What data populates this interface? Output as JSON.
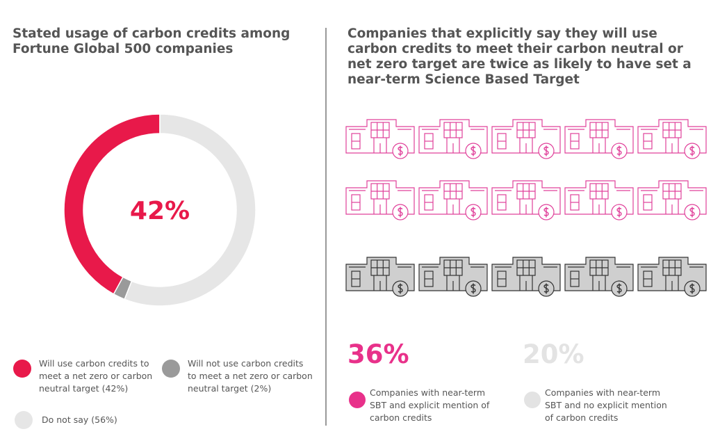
{
  "chart_data": [
    {
      "type": "donut",
      "title": "Stated usage of carbon credits among Fortune Global 500 companies",
      "center_label": "42%",
      "series": [
        {
          "name": "Will use carbon credits to meet a net zero or carbon neutral target (42%)",
          "color": "#e8194a",
          "values": [
            42
          ]
        },
        {
          "name": "Will not use carbon credits to meet a net zero or carbon neutral target (2%)",
          "color": "#9a9a9a",
          "values": [
            2
          ]
        },
        {
          "name": "Do not say (56%)",
          "color": "#e6e6e6",
          "values": [
            56
          ]
        }
      ]
    },
    {
      "type": "stat",
      "title": "Companies that explicitly say they will use carbon credits to meet their carbon neutral or net zero target are twice as likely to have set a near-term Science Based Target",
      "series": [
        {
          "name": "Companies with near-term SBT and explicit mention of carbon credits",
          "color": "#e8318a",
          "values": [
            36
          ],
          "value_labels": [
            "36%"
          ]
        },
        {
          "name": "Companies with near-term SBT and no explicit mention of carbon credits",
          "color": "#e3e3e3",
          "values": [
            20
          ],
          "value_labels": [
            "20%"
          ]
        }
      ]
    }
  ]
}
